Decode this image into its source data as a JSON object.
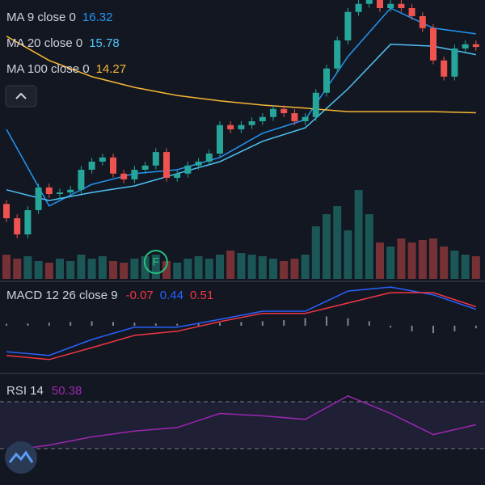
{
  "chart_data": [
    {
      "type": "candlestick",
      "open": [
        11.9,
        11.53,
        11.11,
        11.74,
        12.33,
        12.16,
        12.2,
        12.27,
        12.79,
        13.0,
        13.11,
        12.69,
        12.54,
        12.79,
        12.9,
        13.25,
        12.58,
        12.69,
        12.9,
        13.0,
        13.21,
        13.95,
        13.84,
        13.95,
        14.05,
        14.16,
        14.37,
        14.26,
        14.05,
        14.16,
        14.79,
        15.42,
        16.15,
        16.89,
        17.1,
        17.2,
        16.99,
        17.1,
        16.99,
        16.78,
        16.47,
        15.63,
        15.21,
        15.94,
        16.05
      ],
      "high": [
        12.0,
        11.63,
        11.84,
        12.43,
        12.43,
        12.3,
        12.37,
        12.89,
        13.1,
        13.21,
        13.21,
        12.79,
        12.89,
        13.0,
        13.35,
        13.35,
        12.79,
        13.0,
        13.1,
        13.31,
        14.05,
        14.05,
        14.05,
        14.15,
        14.26,
        14.47,
        14.47,
        14.36,
        14.26,
        14.89,
        15.52,
        16.25,
        16.99,
        17.2,
        17.3,
        17.3,
        17.2,
        17.2,
        17.09,
        16.88,
        16.57,
        15.73,
        16.04,
        16.15,
        16.15
      ],
      "low": [
        11.43,
        11.01,
        11.01,
        11.64,
        12.06,
        12.06,
        12.1,
        12.17,
        12.69,
        12.9,
        12.59,
        12.44,
        12.44,
        12.69,
        12.8,
        12.48,
        12.48,
        12.59,
        12.8,
        12.9,
        13.11,
        13.74,
        13.74,
        13.85,
        13.95,
        14.06,
        14.16,
        13.95,
        13.95,
        14.06,
        14.69,
        15.32,
        16.05,
        16.79,
        17.0,
        16.89,
        16.89,
        16.89,
        16.68,
        16.37,
        15.53,
        15.11,
        15.11,
        15.84,
        15.88
      ],
      "close": [
        11.53,
        11.11,
        11.74,
        12.33,
        12.16,
        12.2,
        12.27,
        12.79,
        13.0,
        13.11,
        12.69,
        12.54,
        12.79,
        12.9,
        13.25,
        12.58,
        12.69,
        12.9,
        13.0,
        13.21,
        13.95,
        13.84,
        13.95,
        14.05,
        14.16,
        14.37,
        14.26,
        14.05,
        14.16,
        14.79,
        15.42,
        16.15,
        16.89,
        17.1,
        17.2,
        16.99,
        17.1,
        16.99,
        16.78,
        16.47,
        15.63,
        15.21,
        15.94,
        16.05,
        15.98
      ],
      "ylim": [
        9.955,
        17.2
      ],
      "up_color": "#26a69a",
      "down_color": "#ef5350",
      "volume": {
        "values": [
          30,
          25,
          28,
          22,
          20,
          25,
          22,
          30,
          25,
          28,
          22,
          20,
          25,
          28,
          30,
          22,
          20,
          25,
          28,
          25,
          30,
          35,
          32,
          30,
          28,
          25,
          22,
          25,
          30,
          65,
          80,
          90,
          60,
          110,
          80,
          45,
          40,
          50,
          45,
          48,
          50,
          40,
          35,
          30,
          28
        ],
        "ylim": [
          0,
          120
        ]
      },
      "series": [
        {
          "name": "MA 9 close 0",
          "color": "#2196f3",
          "x": [
            0,
            4,
            8,
            12,
            16,
            20,
            24,
            28,
            32,
            36,
            40,
            44
          ],
          "values": [
            13.84,
            11.85,
            12.41,
            12.69,
            12.79,
            13.11,
            13.74,
            14.09,
            15.73,
            16.99,
            16.47,
            16.32
          ]
        },
        {
          "name": "MA 20 close 0",
          "color": "#4fc3f7",
          "x": [
            0,
            4,
            8,
            12,
            16,
            20,
            24,
            28,
            32,
            36,
            40,
            44
          ],
          "values": [
            12.27,
            11.99,
            12.2,
            12.37,
            12.69,
            13.0,
            13.53,
            13.88,
            14.89,
            16.05,
            16.0,
            15.78
          ]
        },
        {
          "name": "MA 100 close 0",
          "color": "#f7b733",
          "x": [
            0,
            4,
            8,
            12,
            16,
            20,
            24,
            28,
            32,
            36,
            40,
            44
          ],
          "values": [
            16.26,
            15.63,
            15.21,
            14.93,
            14.72,
            14.58,
            14.47,
            14.39,
            14.3,
            14.3,
            14.3,
            14.27
          ]
        }
      ],
      "annotations": [
        {
          "text": "F",
          "x": 14
        }
      ]
    },
    {
      "type": "macd",
      "legend": "MACD 12 26 close 9",
      "ylim": [
        -1.24,
        1.15
      ],
      "down_color": "#f23645",
      "histogram": {
        "color": "#b2b5be",
        "x": [
          0,
          2,
          4,
          6,
          8,
          10,
          12,
          14,
          16,
          18,
          20,
          22,
          24,
          26,
          28,
          30,
          32,
          34,
          36,
          38,
          40,
          42,
          44
        ],
        "values": [
          0.05,
          0.06,
          0.08,
          0.1,
          0.12,
          0.1,
          0.08,
          0.06,
          0.05,
          0.06,
          0.08,
          0.1,
          0.12,
          0.15,
          0.2,
          0.25,
          0.2,
          0.12,
          -0.05,
          -0.15,
          -0.2,
          -0.15,
          -0.07
        ]
      },
      "series": [
        {
          "color": "#2962ff",
          "x": [
            0,
            4,
            8,
            12,
            16,
            20,
            24,
            28,
            32,
            36,
            40,
            44
          ],
          "values": [
            -0.7,
            -0.8,
            -0.37,
            -0.04,
            -0.04,
            0.17,
            0.39,
            0.39,
            0.93,
            1.04,
            0.83,
            0.44
          ]
        },
        {
          "color": "#f23645",
          "x": [
            0,
            4,
            8,
            12,
            16,
            20,
            24,
            28,
            32,
            36,
            40,
            44
          ],
          "values": [
            -0.8,
            -0.91,
            -0.59,
            -0.26,
            -0.15,
            0.11,
            0.33,
            0.33,
            0.61,
            0.89,
            0.89,
            0.51
          ]
        }
      ]
    },
    {
      "type": "rsi",
      "legend": "RSI 14",
      "ylim": [
        0,
        100
      ],
      "bands": [
        70,
        30
      ],
      "series": [
        {
          "color": "#9c27b0",
          "x": [
            0,
            4,
            8,
            12,
            16,
            20,
            24,
            28,
            32,
            36,
            40,
            44
          ],
          "values": [
            28,
            33,
            40,
            45,
            48,
            60,
            58,
            55,
            75,
            60,
            42,
            50.38
          ]
        }
      ]
    }
  ]
}
